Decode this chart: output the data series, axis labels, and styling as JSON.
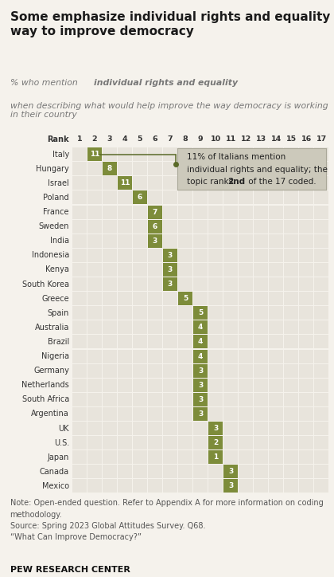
{
  "title": "Some emphasize individual rights and equality as a\nway to improve democracy",
  "countries": [
    "Italy",
    "Hungary",
    "Israel",
    "Poland",
    "France",
    "Sweden",
    "India",
    "Indonesia",
    "Kenya",
    "South Korea",
    "Greece",
    "Spain",
    "Australia",
    "Brazil",
    "Nigeria",
    "Germany",
    "Netherlands",
    "South Africa",
    "Argentina",
    "UK",
    "U.S.",
    "Japan",
    "Canada",
    "Mexico"
  ],
  "values": [
    11,
    8,
    11,
    6,
    7,
    6,
    3,
    3,
    3,
    3,
    5,
    5,
    4,
    4,
    4,
    3,
    3,
    3,
    3,
    3,
    2,
    1,
    3,
    3
  ],
  "ranks": [
    2,
    3,
    4,
    5,
    6,
    6,
    6,
    7,
    7,
    7,
    8,
    9,
    9,
    9,
    9,
    9,
    9,
    9,
    9,
    10,
    10,
    10,
    11,
    11
  ],
  "n_ranks": 17,
  "cell_color_active": "#7d8c3a",
  "cell_color_inactive": "#e8e4dc",
  "bg_color": "#f5f2ec",
  "note_text": "Note: Open-ended question. Refer to Appendix A for more information on coding\nmethodology.\nSource: Spring 2023 Global Attitudes Survey. Q68.\n“What Can Improve Democracy?”",
  "source_label": "PEW RESEARCH CENTER"
}
